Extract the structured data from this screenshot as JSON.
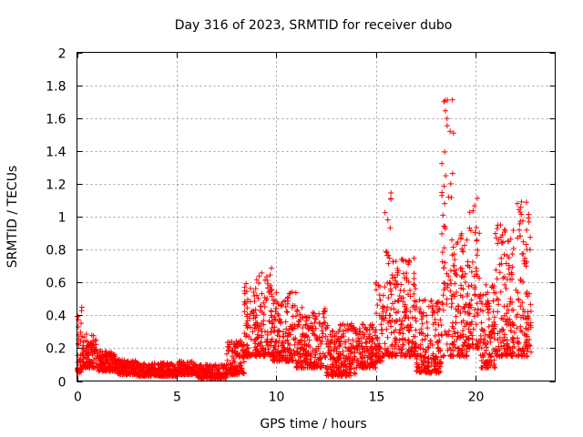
{
  "chart_data": {
    "type": "scatter",
    "title": "Day 316 of 2023, SRMTID for receiver dubo",
    "xlabel": "GPS time / hours",
    "ylabel": "SRMTID / TECUs",
    "xlim": [
      0,
      24
    ],
    "ylim": [
      0,
      2
    ],
    "x_ticks": [
      0,
      5,
      10,
      15,
      20
    ],
    "x_tick_labels": [
      "0",
      "5",
      "10",
      "15",
      "20"
    ],
    "y_ticks": [
      0,
      0.2,
      0.4,
      0.6,
      0.8,
      1,
      1.2,
      1.4,
      1.6,
      1.8,
      2
    ],
    "y_tick_labels": [
      "0",
      "0.2",
      "0.4",
      "0.6",
      "0.8",
      "1",
      "1.2",
      "1.4",
      "1.6",
      "1.8",
      "2"
    ],
    "grid": true,
    "marker": "+",
    "color": "#ff0000",
    "envelope": {
      "description": "approximate per-segment value ranges (hours, TECUs) used to regenerate the dense point cloud",
      "segments": [
        {
          "x": [
            0.0,
            0.3
          ],
          "y": [
            0.05,
            0.45
          ]
        },
        {
          "x": [
            0.3,
            1.0
          ],
          "y": [
            0.08,
            0.3
          ]
        },
        {
          "x": [
            1.0,
            2.0
          ],
          "y": [
            0.06,
            0.18
          ]
        },
        {
          "x": [
            2.0,
            3.0
          ],
          "y": [
            0.04,
            0.13
          ]
        },
        {
          "x": [
            3.0,
            5.0
          ],
          "y": [
            0.03,
            0.11
          ]
        },
        {
          "x": [
            5.0,
            6.0
          ],
          "y": [
            0.04,
            0.12
          ]
        },
        {
          "x": [
            6.0,
            7.5
          ],
          "y": [
            0.02,
            0.1
          ]
        },
        {
          "x": [
            7.5,
            8.4
          ],
          "y": [
            0.04,
            0.25
          ]
        },
        {
          "x": [
            8.4,
            9.0
          ],
          "y": [
            0.15,
            0.6
          ]
        },
        {
          "x": [
            9.0,
            9.8
          ],
          "y": [
            0.15,
            0.7
          ]
        },
        {
          "x": [
            9.8,
            11.0
          ],
          "y": [
            0.12,
            0.55
          ]
        },
        {
          "x": [
            11.0,
            12.5
          ],
          "y": [
            0.08,
            0.45
          ]
        },
        {
          "x": [
            12.5,
            14.0
          ],
          "y": [
            0.03,
            0.35
          ]
        },
        {
          "x": [
            14.0,
            15.0
          ],
          "y": [
            0.08,
            0.35
          ]
        },
        {
          "x": [
            15.0,
            15.4
          ],
          "y": [
            0.12,
            0.6
          ]
        },
        {
          "x": [
            15.4,
            15.8
          ],
          "y": [
            0.15,
            1.15
          ]
        },
        {
          "x": [
            15.8,
            17.0
          ],
          "y": [
            0.15,
            0.75
          ]
        },
        {
          "x": [
            17.0,
            18.3
          ],
          "y": [
            0.05,
            0.5
          ]
        },
        {
          "x": [
            18.3,
            18.9
          ],
          "y": [
            0.15,
            1.8
          ]
        },
        {
          "x": [
            18.9,
            19.6
          ],
          "y": [
            0.15,
            0.9
          ]
        },
        {
          "x": [
            19.6,
            20.2
          ],
          "y": [
            0.2,
            1.12
          ]
        },
        {
          "x": [
            20.2,
            21.0
          ],
          "y": [
            0.08,
            0.6
          ]
        },
        {
          "x": [
            21.0,
            22.0
          ],
          "y": [
            0.15,
            0.95
          ]
        },
        {
          "x": [
            22.0,
            22.8
          ],
          "y": [
            0.15,
            1.1
          ]
        }
      ]
    }
  }
}
